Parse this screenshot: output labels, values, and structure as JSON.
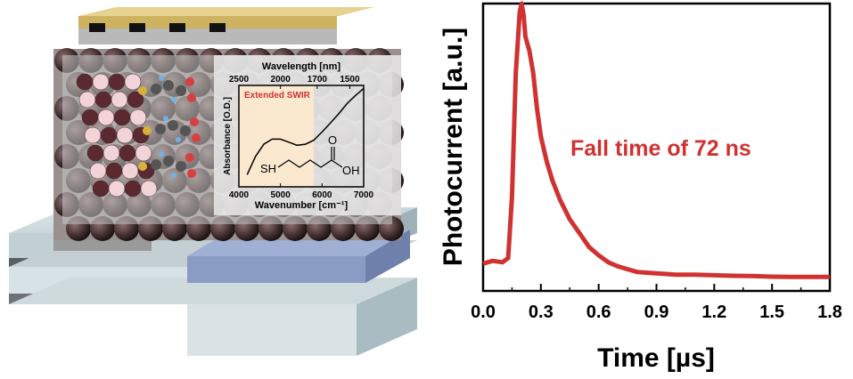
{
  "colors": {
    "trace": "#d03232",
    "annotation": "#d03232",
    "inset_highlight": "#fbe9cf",
    "gold": "#d9c27a",
    "dot": "#4a3434",
    "substrate": "#c9d7da",
    "blue_pad": "#8a9bc4"
  },
  "icons": [
    "quantum-dot-film",
    "nanocrystal-lattice",
    "ligand-molecule",
    "gold-electrode",
    "substrate"
  ],
  "chart_data": [
    {
      "type": "line",
      "title": "",
      "xlabel": "Time [µs]",
      "ylabel": "Photocurrent [a.u.]",
      "xlim": [
        0.0,
        1.8
      ],
      "ylim": [
        0,
        1
      ],
      "xticks": [
        "0.0",
        "0.3",
        "0.6",
        "0.9",
        "1.2",
        "1.5",
        "1.8"
      ],
      "yticks": [],
      "grid": false,
      "annotation": "Fall time of 72 ns",
      "series": [
        {
          "color": "#d03232",
          "x": [
            0.0,
            0.05,
            0.1,
            0.13,
            0.15,
            0.17,
            0.19,
            0.2,
            0.21,
            0.22,
            0.24,
            0.26,
            0.28,
            0.3,
            0.33,
            0.36,
            0.4,
            0.45,
            0.5,
            0.55,
            0.6,
            0.65,
            0.7,
            0.75,
            0.8,
            0.9,
            1.0,
            1.1,
            1.2,
            1.3,
            1.4,
            1.5,
            1.6,
            1.7,
            1.8
          ],
          "y": [
            0.06,
            0.07,
            0.065,
            0.08,
            0.3,
            0.75,
            0.97,
            1.0,
            0.96,
            0.88,
            0.83,
            0.75,
            0.62,
            0.52,
            0.43,
            0.36,
            0.29,
            0.22,
            0.17,
            0.12,
            0.09,
            0.065,
            0.05,
            0.04,
            0.03,
            0.025,
            0.02,
            0.02,
            0.018,
            0.016,
            0.015,
            0.013,
            0.012,
            0.012,
            0.012
          ]
        }
      ]
    },
    {
      "type": "line",
      "title": "",
      "x2label": "Wavelength [nm]",
      "x2ticks": [
        "2500",
        "2000",
        "1700",
        "1500"
      ],
      "xlabel": "Wavenumber [cm⁻¹]",
      "ylabel": "Absorbance [O.D.]",
      "xlim": [
        4000,
        7000
      ],
      "xticks": [
        "4000",
        "5000",
        "6000",
        "7000"
      ],
      "highlight_label": "Extended SWIR",
      "highlight_range": [
        4000,
        5800
      ],
      "molecule_labels": [
        "SH",
        "O",
        "OH"
      ],
      "series": [
        {
          "color": "#000000",
          "x": [
            4200,
            4400,
            4600,
            4800,
            5000,
            5200,
            5400,
            5600,
            5800,
            6000,
            6200,
            6400,
            6600,
            6800,
            7000
          ],
          "y": [
            0.12,
            0.3,
            0.42,
            0.47,
            0.47,
            0.44,
            0.41,
            0.42,
            0.46,
            0.54,
            0.63,
            0.72,
            0.82,
            0.9,
            0.97
          ]
        }
      ]
    }
  ]
}
